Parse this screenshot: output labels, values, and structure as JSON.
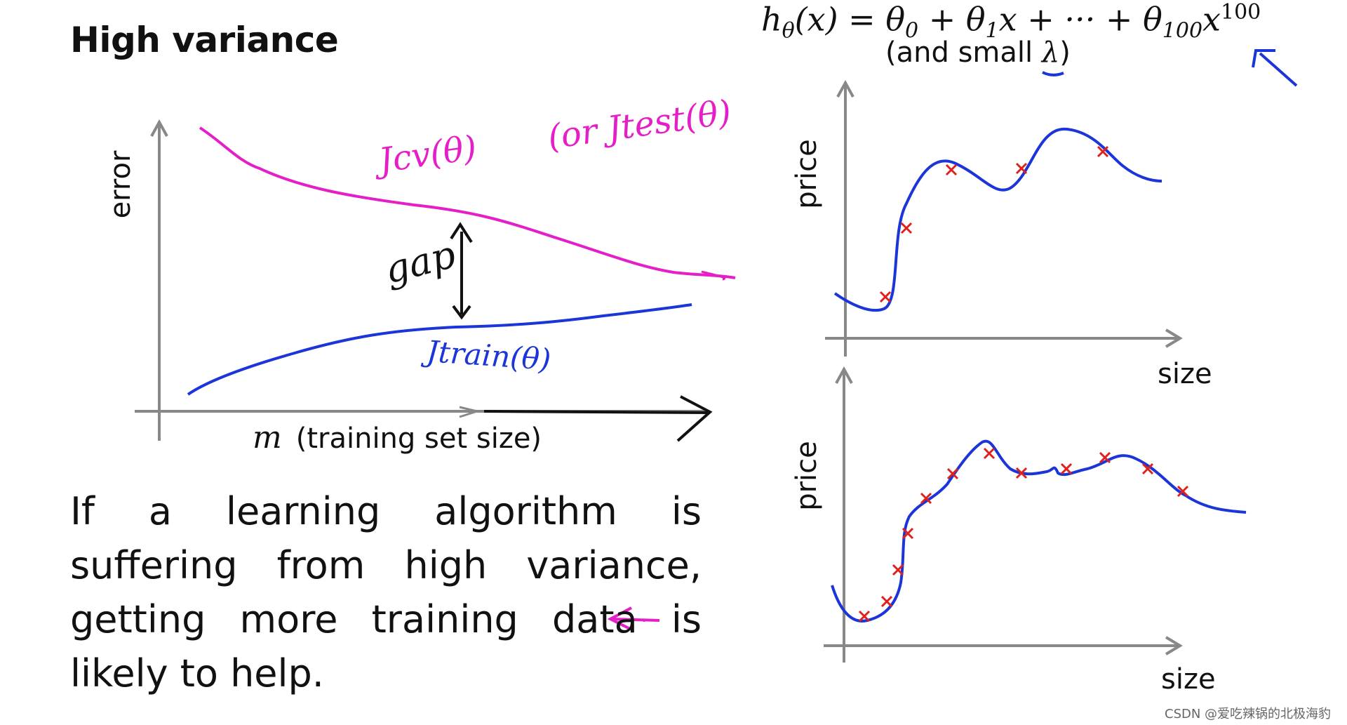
{
  "slide": {
    "title": "High variance",
    "formula": {
      "lhs": "h",
      "lhs_sub": "θ",
      "lhs_arg": "(x) = θ",
      "t0_sub": "0",
      "plus1": " + θ",
      "t1_sub": "1",
      "t1_rest": "x + ··· + θ",
      "t100_sub": "100",
      "t100_rest": "x",
      "t100_sup": "100"
    },
    "lambda_note_open": "(and small ",
    "lambda_symbol": "λ",
    "lambda_note_close": ")",
    "body_text": "If a learning algorithm is suffering from high variance, getting more training data is likely to help."
  },
  "learning_curve": {
    "ylabel": "error",
    "xlabel_var": "m",
    "xlabel": "(training set size)",
    "annotations": {
      "cv": "Jcv(θ)",
      "test": "(or Jtest(θ)",
      "train": "Jtrain(θ)",
      "gap": "gap"
    },
    "colors": {
      "cv": "#e51fc8",
      "train": "#1c35d8",
      "axis": "#888888"
    }
  },
  "plots": {
    "top": {
      "ylabel": "price",
      "xlabel": "size"
    },
    "bottom": {
      "ylabel": "price",
      "xlabel": "size"
    },
    "curve_color": "#1c35d8",
    "marker_color": "#e0201a"
  },
  "watermark": "CSDN @爱吃辣锅的北极海豹"
}
